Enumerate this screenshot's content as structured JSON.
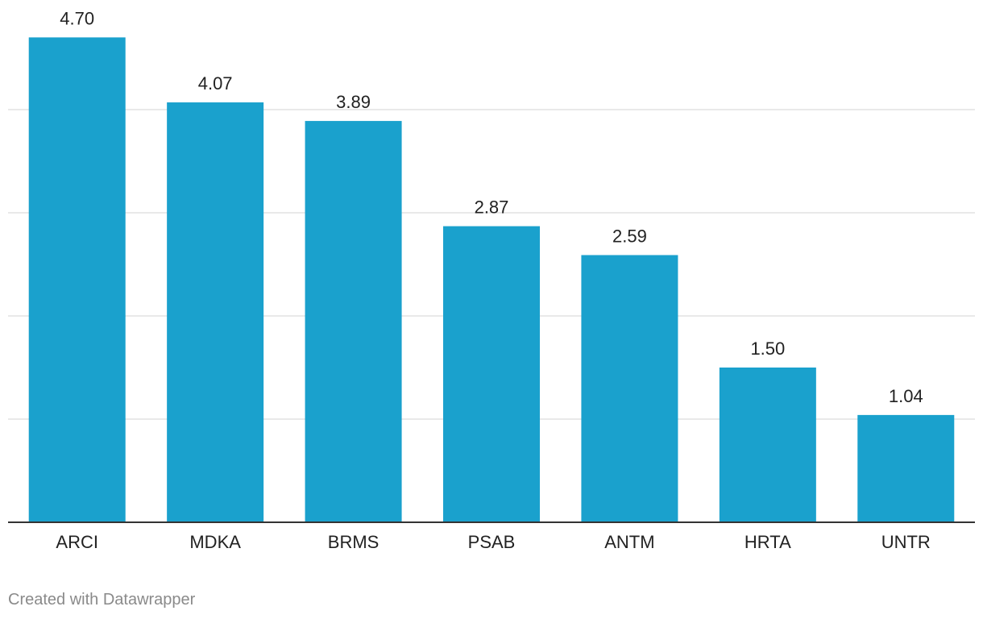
{
  "chart_data": {
    "type": "bar",
    "categories": [
      "ARCI",
      "MDKA",
      "BRMS",
      "PSAB",
      "ANTM",
      "HRTA",
      "UNTR"
    ],
    "values": [
      4.7,
      4.07,
      3.89,
      2.87,
      2.59,
      1.5,
      1.04
    ],
    "value_labels": [
      "4.70",
      "4.07",
      "3.89",
      "2.87",
      "2.59",
      "1.50",
      "1.04"
    ],
    "title": "",
    "xlabel": "",
    "ylabel": "",
    "ylim": [
      0,
      5
    ],
    "gridlines": [
      1,
      2,
      3,
      4
    ],
    "bar_color": "#1aa1cd",
    "grid_color": "#e2e2e2",
    "axis_color": "#333333"
  },
  "footer": {
    "credit": "Created with Datawrapper"
  }
}
